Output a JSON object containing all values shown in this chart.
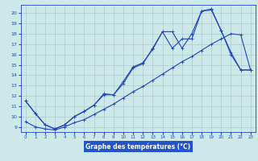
{
  "title": "Graphe des températures (°C)",
  "background_color": "#cce8e8",
  "label_bg_color": "#2255cc",
  "label_text_color": "#ffffff",
  "line_color": "#2244bb",
  "grid_color": "#aacccc",
  "xlim": [
    -0.5,
    23.5
  ],
  "ylim": [
    8.5,
    20.8
  ],
  "xticks": [
    0,
    1,
    2,
    3,
    4,
    5,
    6,
    7,
    8,
    9,
    10,
    11,
    12,
    13,
    14,
    15,
    16,
    17,
    18,
    19,
    20,
    21,
    22,
    23
  ],
  "yticks": [
    9,
    10,
    11,
    12,
    13,
    14,
    15,
    16,
    17,
    18,
    19,
    20
  ],
  "series1_x": [
    0,
    1,
    2,
    3,
    4,
    5,
    6,
    7,
    8,
    9,
    10,
    11,
    12,
    13,
    14,
    15,
    16,
    17,
    18,
    19,
    20,
    21,
    22,
    23
  ],
  "series1_y": [
    11.5,
    10.3,
    9.2,
    8.8,
    9.2,
    10.0,
    10.5,
    11.1,
    12.2,
    12.1,
    13.4,
    14.8,
    15.2,
    16.5,
    18.2,
    18.2,
    16.6,
    18.0,
    20.2,
    20.3,
    18.3,
    16.2,
    14.5,
    14.5
  ],
  "series2_x": [
    0,
    1,
    2,
    3,
    4,
    5,
    6,
    7,
    8,
    9,
    10,
    11,
    12,
    13,
    14,
    15,
    16,
    17,
    18,
    19,
    20,
    21,
    22,
    23
  ],
  "series2_y": [
    11.5,
    10.3,
    9.2,
    8.8,
    9.2,
    10.0,
    10.5,
    11.1,
    12.1,
    12.1,
    13.2,
    14.7,
    15.1,
    16.6,
    18.2,
    16.6,
    17.5,
    17.5,
    20.2,
    20.4,
    18.3,
    16.0,
    14.5,
    14.5
  ],
  "series3_x": [
    0,
    1,
    2,
    3,
    4,
    5,
    6,
    7,
    8,
    9,
    10,
    11,
    12,
    13,
    14,
    15,
    16,
    17,
    18,
    19,
    20,
    21,
    22,
    23
  ],
  "series3_y": [
    9.5,
    9.0,
    8.8,
    8.7,
    9.0,
    9.4,
    9.7,
    10.2,
    10.7,
    11.2,
    11.8,
    12.4,
    12.9,
    13.5,
    14.1,
    14.7,
    15.3,
    15.8,
    16.4,
    17.0,
    17.5,
    18.0,
    17.9,
    14.5
  ]
}
